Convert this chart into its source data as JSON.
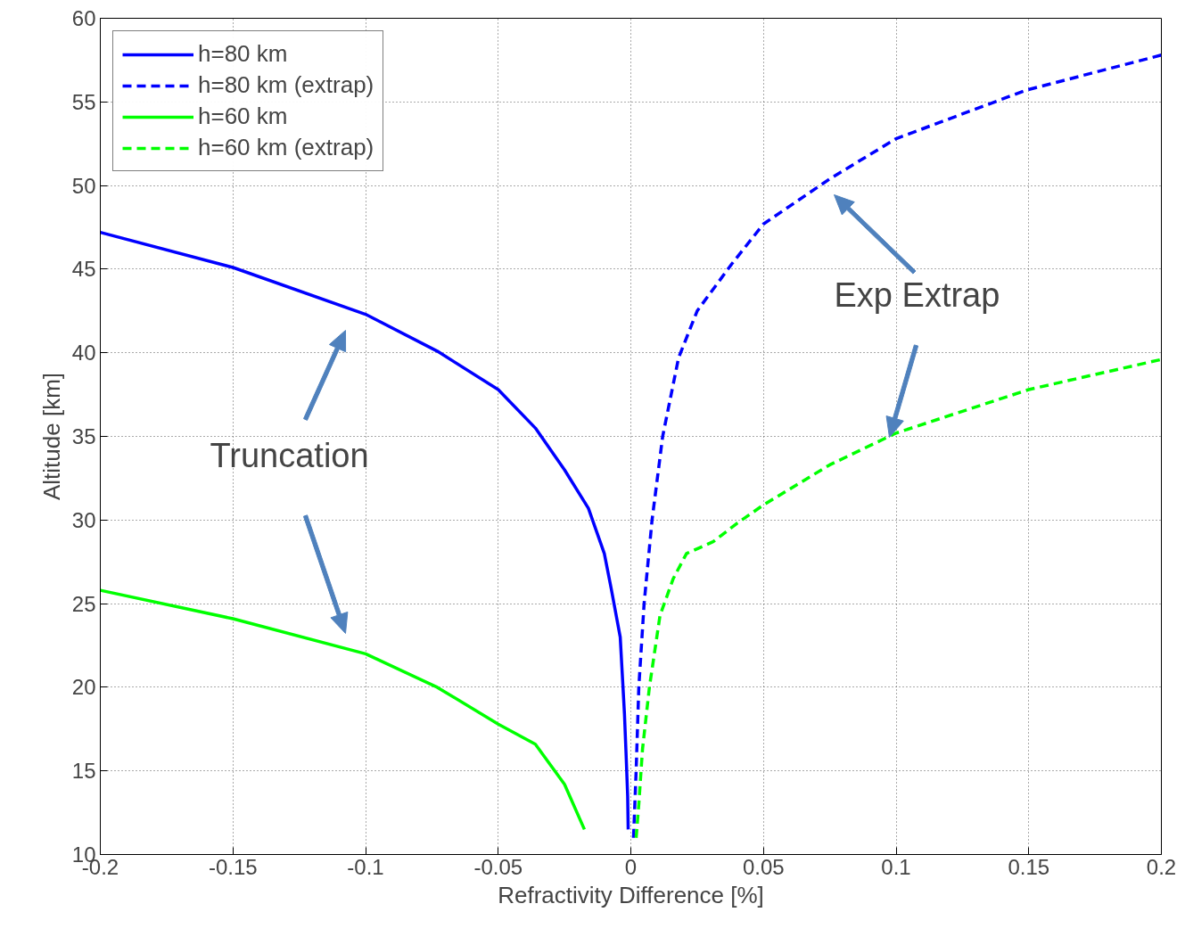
{
  "chart_data": {
    "type": "line",
    "xlabel": "Refractivity Difference [%]",
    "ylabel": "Altitude [km]",
    "xlim": [
      -0.2,
      0.2
    ],
    "ylim": [
      10,
      60
    ],
    "xticks": [
      -0.2,
      -0.15,
      -0.1,
      -0.05,
      {
        "value": 0,
        "label": "0"
      },
      0.05,
      0.1,
      0.15,
      0.2
    ],
    "yticks": [
      10,
      15,
      20,
      25,
      30,
      35,
      40,
      45,
      50,
      55,
      60
    ],
    "grid": true,
    "legend": "top left",
    "series": [
      {
        "name": "h=80 km",
        "color": "#0000ff",
        "line_style": "solid",
        "x": [
          -0.2,
          -0.15,
          -0.1,
          -0.073,
          -0.05,
          -0.036,
          -0.025,
          -0.016,
          -0.01,
          -0.0074,
          -0.004,
          -0.0024,
          -0.0018,
          -0.0012,
          -0.001
        ],
        "values": [
          47.2,
          45.1,
          42.3,
          40.1,
          37.8,
          35.5,
          33.0,
          30.7,
          28.0,
          25.9,
          23.0,
          18.4,
          16.0,
          13.5,
          11.5
        ]
      },
      {
        "name": "h=80 km (extrap)",
        "color": "#0000ff",
        "line_style": "dashed",
        "x": [
          0.001,
          0.002,
          0.003,
          0.005,
          0.008,
          0.012,
          0.018,
          0.025,
          0.038,
          0.05,
          0.075,
          0.1,
          0.149,
          0.2
        ],
        "values": [
          11.0,
          15.0,
          20.0,
          25.0,
          30.0,
          35.0,
          39.7,
          42.5,
          45.3,
          47.7,
          50.4,
          52.8,
          55.7,
          57.8
        ]
      },
      {
        "name": "h=60 km",
        "color": "#00ff00",
        "line_style": "solid",
        "x": [
          -0.2,
          -0.15,
          -0.1,
          -0.073,
          -0.05,
          -0.036,
          -0.025,
          -0.0175
        ],
        "values": [
          25.8,
          24.1,
          22.0,
          20.0,
          17.8,
          16.6,
          14.2,
          11.5
        ]
      },
      {
        "name": "h=60 km (extrap)",
        "color": "#00ff00",
        "line_style": "dashed",
        "x": [
          0.002,
          0.003,
          0.0044,
          0.007,
          0.011,
          0.016,
          0.021,
          0.031,
          0.04,
          0.05,
          0.075,
          0.1,
          0.15,
          0.2
        ],
        "values": [
          11.0,
          13.0,
          16.3,
          20.0,
          24.3,
          26.5,
          28.0,
          28.7,
          29.8,
          30.9,
          33.3,
          35.2,
          37.8,
          39.6
        ]
      }
    ],
    "annotations": [
      "Exp Extrap",
      "Truncation"
    ]
  }
}
